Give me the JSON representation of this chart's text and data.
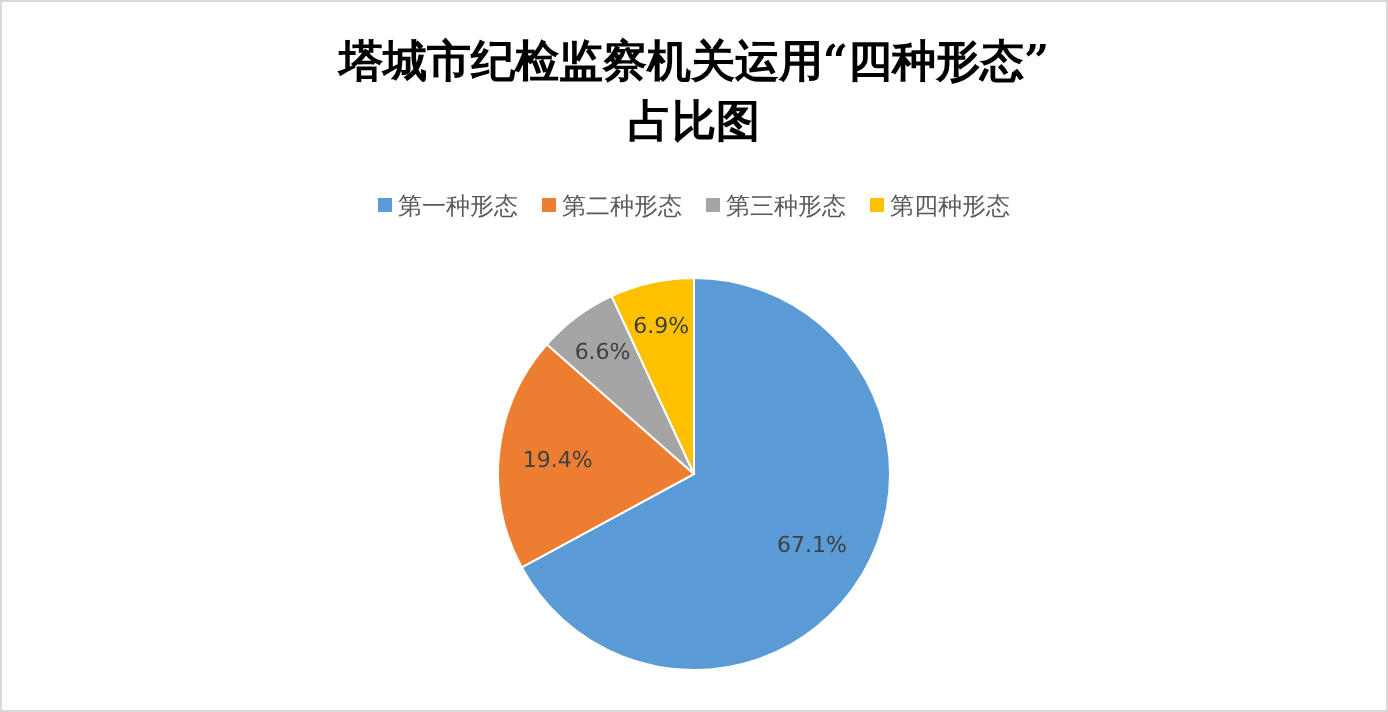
{
  "chart_data": {
    "type": "pie",
    "title": "塔城市纪检监察机关运用“四种形态”\n占比图",
    "categories": [
      "第一种形态",
      "第二种形态",
      "第三种形态",
      "第四种形态"
    ],
    "values": [
      67.1,
      19.4,
      6.6,
      6.9
    ],
    "colors": [
      "#5b9bd5",
      "#ed7d31",
      "#a5a5a5",
      "#ffc000"
    ],
    "value_labels": [
      "67.1%",
      "19.4%",
      "6.6%",
      "6.9%"
    ],
    "legend": "top"
  }
}
